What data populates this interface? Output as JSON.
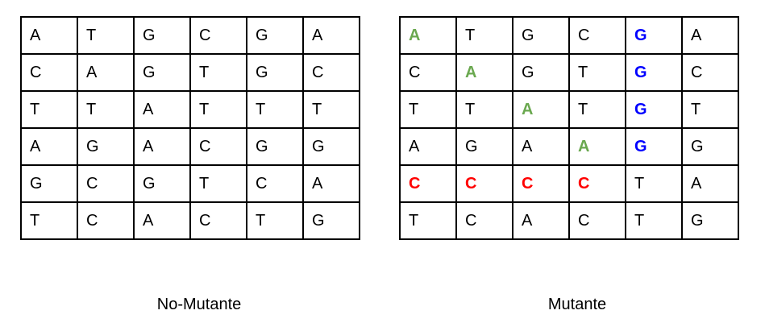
{
  "colors": {
    "green": "#6aa84f",
    "red": "#ff0000",
    "blue": "#0000ff",
    "border": "#000000"
  },
  "left_grid": {
    "caption": "No-Mutante",
    "rows": [
      [
        "A",
        "T",
        "G",
        "C",
        "G",
        "A"
      ],
      [
        "C",
        "A",
        "G",
        "T",
        "G",
        "C"
      ],
      [
        "T",
        "T",
        "A",
        "T",
        "T",
        "T"
      ],
      [
        "A",
        "G",
        "A",
        "C",
        "G",
        "G"
      ],
      [
        "G",
        "C",
        "G",
        "T",
        "C",
        "A"
      ],
      [
        "T",
        "C",
        "A",
        "C",
        "T",
        "G"
      ]
    ]
  },
  "right_grid": {
    "caption": "Mutante",
    "rows": [
      [
        {
          "t": "A",
          "c": "green"
        },
        {
          "t": "T"
        },
        {
          "t": "G"
        },
        {
          "t": "C"
        },
        {
          "t": "G",
          "c": "blue"
        },
        {
          "t": "A"
        }
      ],
      [
        {
          "t": "C"
        },
        {
          "t": "A",
          "c": "green"
        },
        {
          "t": "G"
        },
        {
          "t": "T"
        },
        {
          "t": "G",
          "c": "blue"
        },
        {
          "t": "C"
        }
      ],
      [
        {
          "t": "T"
        },
        {
          "t": "T"
        },
        {
          "t": "A",
          "c": "green"
        },
        {
          "t": "T"
        },
        {
          "t": "G",
          "c": "blue"
        },
        {
          "t": "T"
        }
      ],
      [
        {
          "t": "A"
        },
        {
          "t": "G"
        },
        {
          "t": "A"
        },
        {
          "t": "A",
          "c": "green"
        },
        {
          "t": "G",
          "c": "blue"
        },
        {
          "t": "G"
        }
      ],
      [
        {
          "t": "C",
          "c": "red"
        },
        {
          "t": "C",
          "c": "red"
        },
        {
          "t": "C",
          "c": "red"
        },
        {
          "t": "C",
          "c": "red"
        },
        {
          "t": "T"
        },
        {
          "t": "A"
        }
      ],
      [
        {
          "t": "T"
        },
        {
          "t": "C"
        },
        {
          "t": "A"
        },
        {
          "t": "C"
        },
        {
          "t": "T"
        },
        {
          "t": "G"
        }
      ]
    ]
  }
}
